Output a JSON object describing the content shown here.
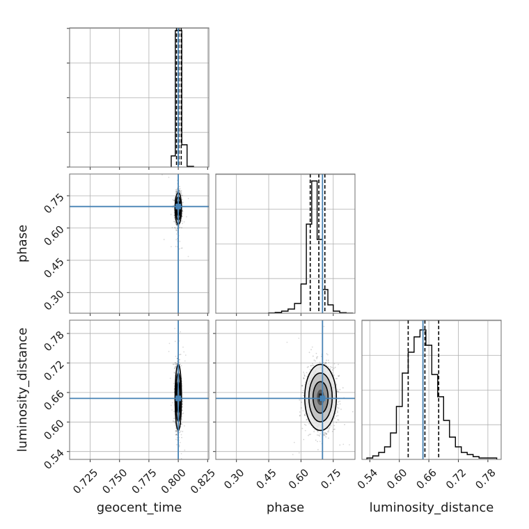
{
  "chart_data": {
    "type": "corner",
    "parameters": [
      "geocent_time",
      "phase",
      "luminosity_distance"
    ],
    "axis_labels": {
      "geocent_time": "geocent_time",
      "phase": "phase",
      "luminosity_distance": "luminosity_distance"
    },
    "ticks": {
      "geocent_time": [
        "0.725",
        "0.750",
        "0.775",
        "0.800",
        "0.825"
      ],
      "phase": [
        "0.30",
        "0.45",
        "0.60",
        "0.75"
      ],
      "luminosity_distance": [
        "0.54",
        "0.60",
        "0.66",
        "0.72",
        "0.78"
      ]
    },
    "ranges": {
      "geocent_time": [
        0.7075,
        0.826
      ],
      "phase": [
        0.204,
        0.851
      ],
      "luminosity_distance": [
        0.524,
        0.807
      ]
    },
    "injection": {
      "geocent_time": 0.8,
      "phase": 0.7,
      "luminosity_distance": 0.648
    },
    "quantiles": {
      "geocent_time": [
        0.7985,
        0.8005,
        0.8025
      ],
      "phase": [
        0.643,
        0.683,
        0.711
      ],
      "luminosity_distance": [
        0.618,
        0.652,
        0.68
      ]
    },
    "histograms": {
      "geocent_time": {
        "bin_edges": [
          0.794,
          0.7975,
          0.8,
          0.803,
          0.8075,
          0.813
        ],
        "heights": [
          0.08,
          0.98,
          0.98,
          0.16,
          0.005
        ]
      },
      "phase": {
        "bin_edges": [
          0.45,
          0.48,
          0.51,
          0.54,
          0.57,
          0.6,
          0.625,
          0.65,
          0.675,
          0.7,
          0.725,
          0.75,
          0.78,
          0.81,
          0.84
        ],
        "heights": [
          0.002,
          0.006,
          0.015,
          0.03,
          0.07,
          0.21,
          0.64,
          0.95,
          0.53,
          0.17,
          0.06,
          0.015,
          0.004,
          0.001
        ]
      },
      "luminosity_distance": {
        "bin_edges": [
          0.534,
          0.546,
          0.558,
          0.57,
          0.582,
          0.594,
          0.606,
          0.618,
          0.63,
          0.642,
          0.654,
          0.666,
          0.678,
          0.69,
          0.702,
          0.714,
          0.726,
          0.738,
          0.75,
          0.762,
          0.774,
          0.786,
          0.798
        ],
        "heights": [
          0.01,
          0.025,
          0.05,
          0.09,
          0.19,
          0.38,
          0.62,
          0.77,
          0.88,
          0.93,
          0.82,
          0.61,
          0.45,
          0.28,
          0.16,
          0.09,
          0.05,
          0.035,
          0.02,
          0.01,
          0.01,
          0.01
        ]
      }
    },
    "colors": {
      "truth_line": "#4682b4",
      "contour": "#000000",
      "histogram": "#000000",
      "quantile_line": "#000000",
      "grid": "#b0b0b0",
      "scatter_points": "#000000"
    },
    "grid": true,
    "legend": "none"
  }
}
